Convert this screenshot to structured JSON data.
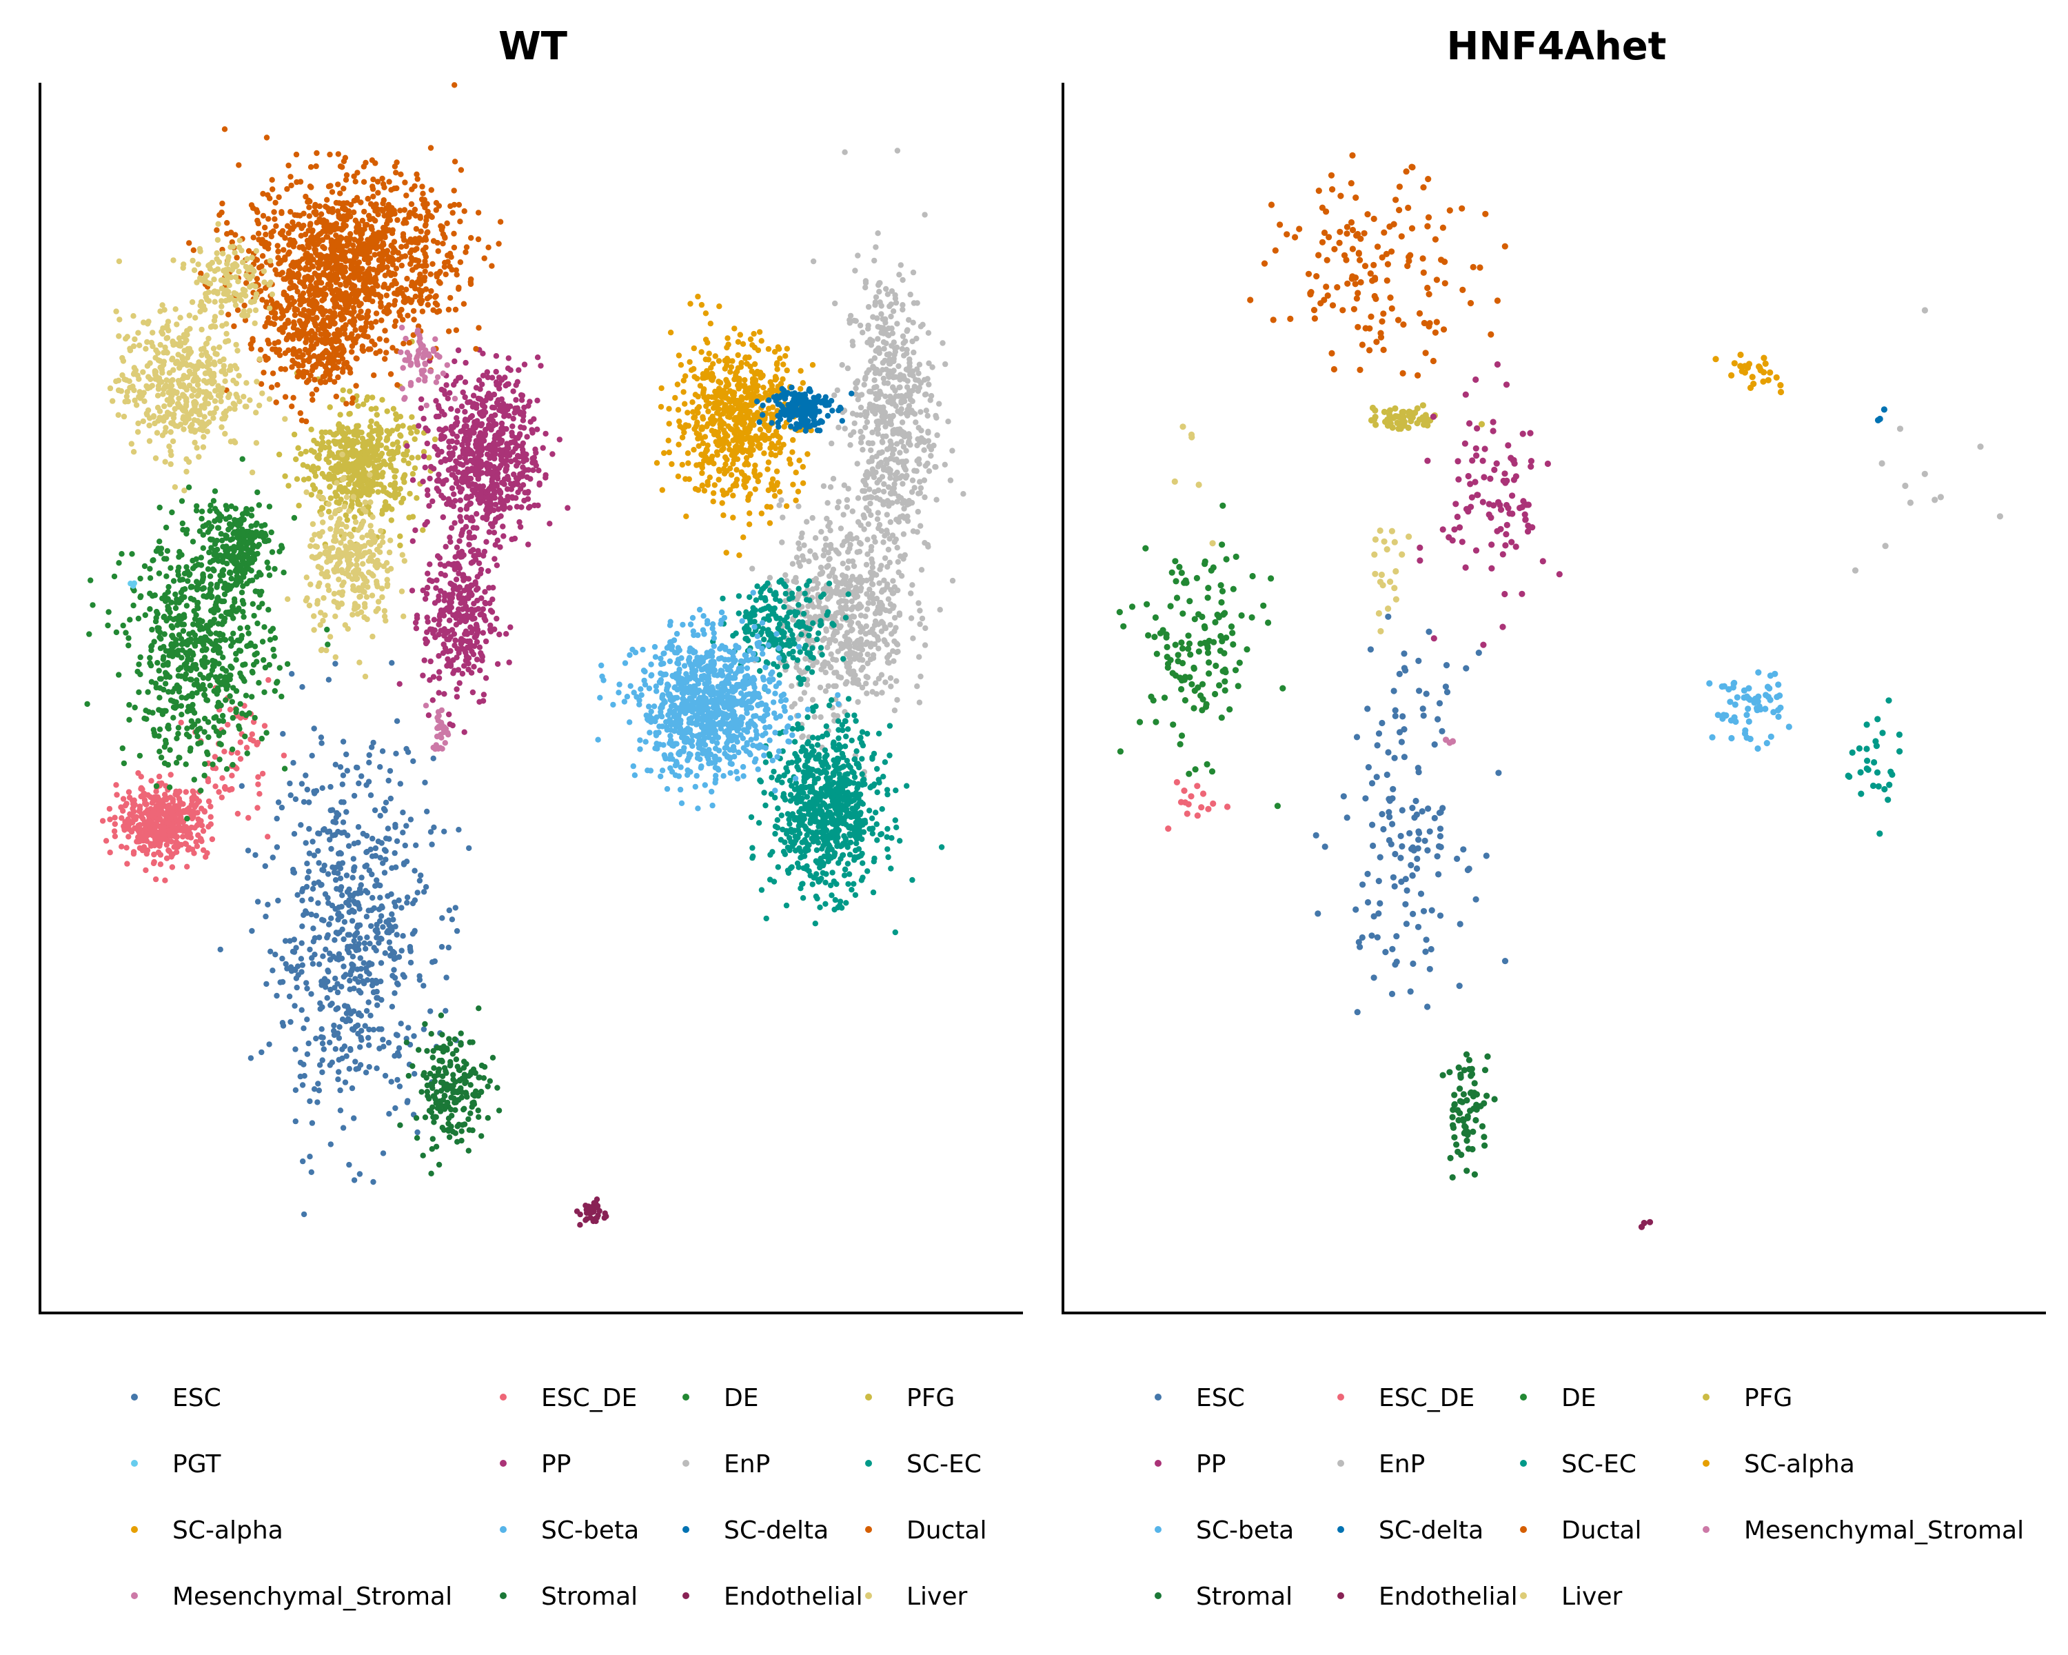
{
  "chart_data": [
    {
      "type": "scatter",
      "title": "WT",
      "xlabel": "",
      "ylabel": "",
      "legend_position": "bottom",
      "legend_items": [
        "ESC",
        "ESC_DE",
        "DE",
        "PFG",
        "PGT",
        "PP",
        "EnP",
        "SC-EC",
        "SC-alpha",
        "SC-beta",
        "SC-delta",
        "Ductal",
        "Mesenchymal_Stromal",
        "Stromal",
        "Endothelial",
        "Liver"
      ],
      "series": [
        {
          "name": "ESC",
          "color": "#4477AA",
          "clusters": [
            {
              "cx": 0.3,
              "cy": 0.3,
              "rx": 0.09,
              "ry": 0.16,
              "n": 650
            }
          ]
        },
        {
          "name": "ESC_DE",
          "color": "#EE6677",
          "clusters": [
            {
              "cx": 0.09,
              "cy": 0.4,
              "rx": 0.05,
              "ry": 0.03,
              "n": 450
            },
            {
              "cx": 0.17,
              "cy": 0.46,
              "rx": 0.04,
              "ry": 0.06,
              "n": 60
            }
          ]
        },
        {
          "name": "DE",
          "color": "#228833",
          "clusters": [
            {
              "cx": 0.13,
              "cy": 0.55,
              "rx": 0.08,
              "ry": 0.1,
              "n": 650
            },
            {
              "cx": 0.17,
              "cy": 0.64,
              "rx": 0.04,
              "ry": 0.04,
              "n": 220
            }
          ]
        },
        {
          "name": "PFG",
          "color": "#CCBB44",
          "clusters": [
            {
              "cx": 0.31,
              "cy": 0.71,
              "rx": 0.06,
              "ry": 0.05,
              "n": 500
            }
          ]
        },
        {
          "name": "PGT",
          "color": "#66CCEE",
          "clusters": [
            {
              "cx": 0.055,
              "cy": 0.61,
              "rx": 0.005,
              "ry": 0.005,
              "n": 3
            }
          ]
        },
        {
          "name": "PP",
          "color": "#AA3377",
          "clusters": [
            {
              "cx": 0.45,
              "cy": 0.72,
              "rx": 0.06,
              "ry": 0.07,
              "n": 650
            },
            {
              "cx": 0.42,
              "cy": 0.58,
              "rx": 0.04,
              "ry": 0.08,
              "n": 320
            }
          ]
        },
        {
          "name": "EnP",
          "color": "#BBBBBB",
          "clusters": [
            {
              "cx": 0.9,
              "cy": 0.75,
              "rx": 0.05,
              "ry": 0.13,
              "n": 550
            },
            {
              "cx": 0.85,
              "cy": 0.58,
              "rx": 0.07,
              "ry": 0.09,
              "n": 550
            }
          ]
        },
        {
          "name": "SC-EC",
          "color": "#009988",
          "clusters": [
            {
              "cx": 0.83,
              "cy": 0.41,
              "rx": 0.06,
              "ry": 0.07,
              "n": 750
            },
            {
              "cx": 0.78,
              "cy": 0.57,
              "rx": 0.06,
              "ry": 0.04,
              "n": 200
            }
          ]
        },
        {
          "name": "SC-alpha",
          "color": "#E69F00",
          "clusters": [
            {
              "cx": 0.73,
              "cy": 0.75,
              "rx": 0.07,
              "ry": 0.07,
              "n": 650
            }
          ]
        },
        {
          "name": "SC-beta",
          "color": "#56B4E9",
          "clusters": [
            {
              "cx": 0.7,
              "cy": 0.5,
              "rx": 0.08,
              "ry": 0.06,
              "n": 900
            }
          ]
        },
        {
          "name": "SC-delta",
          "color": "#0072B2",
          "clusters": [
            {
              "cx": 0.8,
              "cy": 0.76,
              "rx": 0.035,
              "ry": 0.02,
              "n": 160
            }
          ]
        },
        {
          "name": "Ductal",
          "color": "#D55E00",
          "clusters": [
            {
              "cx": 0.3,
              "cy": 0.89,
              "rx": 0.12,
              "ry": 0.07,
              "n": 1100
            },
            {
              "cx": 0.26,
              "cy": 0.82,
              "rx": 0.06,
              "ry": 0.06,
              "n": 350
            }
          ]
        },
        {
          "name": "Mesenchymal_Stromal",
          "color": "#CC79A7",
          "clusters": [
            {
              "cx": 0.38,
              "cy": 0.8,
              "rx": 0.025,
              "ry": 0.03,
              "n": 60
            },
            {
              "cx": 0.4,
              "cy": 0.48,
              "rx": 0.01,
              "ry": 0.02,
              "n": 30
            }
          ]
        },
        {
          "name": "Stromal",
          "color": "#1B7837",
          "clusters": [
            {
              "cx": 0.41,
              "cy": 0.17,
              "rx": 0.04,
              "ry": 0.05,
              "n": 200
            }
          ]
        },
        {
          "name": "Endothelial",
          "color": "#882255",
          "clusters": [
            {
              "cx": 0.57,
              "cy": 0.06,
              "rx": 0.015,
              "ry": 0.012,
              "n": 35
            }
          ]
        },
        {
          "name": "Liver",
          "color": "#DDCC77",
          "clusters": [
            {
              "cx": 0.11,
              "cy": 0.78,
              "rx": 0.07,
              "ry": 0.06,
              "n": 450
            },
            {
              "cx": 0.16,
              "cy": 0.87,
              "rx": 0.04,
              "ry": 0.04,
              "n": 140
            },
            {
              "cx": 0.3,
              "cy": 0.62,
              "rx": 0.05,
              "ry": 0.06,
              "n": 280
            }
          ]
        }
      ]
    },
    {
      "type": "scatter",
      "title": "HNF4Ahet",
      "xlabel": "",
      "ylabel": "",
      "legend_position": "bottom",
      "legend_items": [
        "ESC",
        "ESC_DE",
        "DE",
        "PFG",
        "PP",
        "EnP",
        "SC-EC",
        "SC-alpha",
        "SC-beta",
        "SC-delta",
        "Ductal",
        "Mesenchymal_Stromal",
        "Stromal",
        "Endothelial",
        "Liver"
      ],
      "series": [
        {
          "name": "ESC",
          "color": "#4477AA",
          "clusters": [
            {
              "cx": 0.33,
              "cy": 0.4,
              "rx": 0.07,
              "ry": 0.14,
              "n": 150
            }
          ]
        },
        {
          "name": "ESC_DE",
          "color": "#EE6677",
          "clusters": [
            {
              "cx": 0.1,
              "cy": 0.42,
              "rx": 0.03,
              "ry": 0.03,
              "n": 15
            }
          ]
        },
        {
          "name": "DE",
          "color": "#228833",
          "clusters": [
            {
              "cx": 0.1,
              "cy": 0.55,
              "rx": 0.07,
              "ry": 0.09,
              "n": 140
            }
          ]
        },
        {
          "name": "PFG",
          "color": "#CCBB44",
          "clusters": [
            {
              "cx": 0.33,
              "cy": 0.75,
              "rx": 0.04,
              "ry": 0.01,
              "n": 60
            }
          ]
        },
        {
          "name": "PP",
          "color": "#AA3377",
          "clusters": [
            {
              "cx": 0.43,
              "cy": 0.68,
              "rx": 0.06,
              "ry": 0.09,
              "n": 100
            }
          ]
        },
        {
          "name": "EnP",
          "color": "#BBBBBB",
          "clusters": [
            {
              "cx": 0.9,
              "cy": 0.68,
              "rx": 0.07,
              "ry": 0.12,
              "n": 12
            }
          ]
        },
        {
          "name": "SC-EC",
          "color": "#009988",
          "clusters": [
            {
              "cx": 0.85,
              "cy": 0.45,
              "rx": 0.03,
              "ry": 0.05,
              "n": 28
            }
          ]
        },
        {
          "name": "SC-alpha",
          "color": "#E69F00",
          "clusters": [
            {
              "cx": 0.72,
              "cy": 0.79,
              "rx": 0.04,
              "ry": 0.02,
              "n": 25
            }
          ]
        },
        {
          "name": "SC-beta",
          "color": "#56B4E9",
          "clusters": [
            {
              "cx": 0.71,
              "cy": 0.5,
              "rx": 0.04,
              "ry": 0.03,
              "n": 60
            }
          ]
        },
        {
          "name": "SC-delta",
          "color": "#0072B2",
          "clusters": [
            {
              "cx": 0.86,
              "cy": 0.75,
              "rx": 0.01,
              "ry": 0.01,
              "n": 3
            }
          ]
        },
        {
          "name": "Ductal",
          "color": "#D55E00",
          "clusters": [
            {
              "cx": 0.3,
              "cy": 0.88,
              "rx": 0.11,
              "ry": 0.08,
              "n": 150
            }
          ]
        },
        {
          "name": "Mesenchymal_Stromal",
          "color": "#CC79A7",
          "clusters": [
            {
              "cx": 0.38,
              "cy": 0.47,
              "rx": 0.005,
              "ry": 0.005,
              "n": 3
            }
          ]
        },
        {
          "name": "Stromal",
          "color": "#1B7837",
          "clusters": [
            {
              "cx": 0.4,
              "cy": 0.15,
              "rx": 0.025,
              "ry": 0.05,
              "n": 70
            }
          ]
        },
        {
          "name": "Endothelial",
          "color": "#882255",
          "clusters": [
            {
              "cx": 0.6,
              "cy": 0.05,
              "rx": 0.008,
              "ry": 0.008,
              "n": 3
            }
          ]
        },
        {
          "name": "Liver",
          "color": "#DDCC77",
          "clusters": [
            {
              "cx": 0.31,
              "cy": 0.62,
              "rx": 0.02,
              "ry": 0.04,
              "n": 20
            },
            {
              "cx": 0.1,
              "cy": 0.7,
              "rx": 0.05,
              "ry": 0.05,
              "n": 6
            }
          ]
        }
      ]
    }
  ],
  "panels": [
    {
      "title": "WT",
      "legend": [
        [
          "ESC",
          "ESC_DE",
          "DE",
          "PFG"
        ],
        [
          "PGT",
          "PP",
          "EnP",
          "SC-EC"
        ],
        [
          "SC-alpha",
          "SC-beta",
          "SC-delta",
          "Ductal"
        ],
        [
          "Mesenchymal_Stromal",
          "Stromal",
          "Endothelial",
          "Liver"
        ]
      ]
    },
    {
      "title": "HNF4Ahet",
      "legend": [
        [
          "ESC",
          "ESC_DE",
          "DE",
          "PFG"
        ],
        [
          "PP",
          "EnP",
          "SC-EC",
          "SC-alpha"
        ],
        [
          "SC-beta",
          "SC-delta",
          "Ductal",
          "Mesenchymal_Stromal"
        ],
        [
          "Stromal",
          "Endothelial",
          "Liver",
          ""
        ]
      ]
    }
  ],
  "colors": {
    "ESC": "#4477AA",
    "ESC_DE": "#EE6677",
    "DE": "#228833",
    "PFG": "#CCBB44",
    "PGT": "#66CCEE",
    "PP": "#AA3377",
    "EnP": "#BBBBBB",
    "SC-EC": "#009988",
    "SC-alpha": "#E69F00",
    "SC-beta": "#56B4E9",
    "SC-delta": "#0072B2",
    "Ductal": "#D55E00",
    "Mesenchymal_Stromal": "#CC79A7",
    "Stromal": "#1B7837",
    "Endothelial": "#882255",
    "Liver": "#DDCC77"
  }
}
